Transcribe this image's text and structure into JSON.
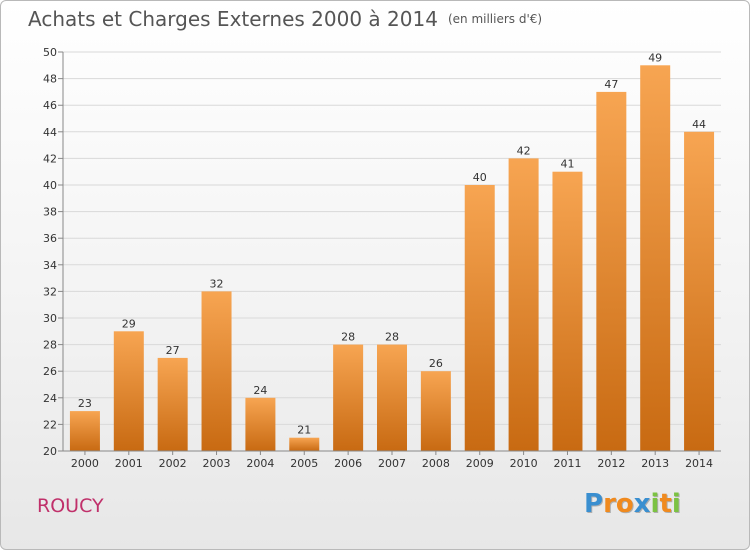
{
  "header": {
    "title": "Achats et Charges Externes 2000 à 2014",
    "unit": "(en milliers d'€)"
  },
  "footer": {
    "place": "ROUCY",
    "logo": [
      "P",
      "r",
      "o",
      "x",
      "i",
      "t",
      "i"
    ],
    "logo_colors": [
      "#3a8fd0",
      "#f08a1e",
      "#f08a1e",
      "#3a8fd0",
      "#7cc242",
      "#f08a1e",
      "#7cc242"
    ]
  },
  "colors": {
    "bar_light": "#f7a552",
    "bar_dark": "#c86a12",
    "grid": "#d9d9d9",
    "axis": "#888888",
    "title": "#555555",
    "place": "#c0306a"
  },
  "chart_data": {
    "type": "bar",
    "title": "Achats et Charges Externes 2000 à 2014",
    "subtitle": "(en milliers d'€)",
    "categories": [
      "2000",
      "2001",
      "2002",
      "2003",
      "2004",
      "2005",
      "2006",
      "2007",
      "2008",
      "2009",
      "2010",
      "2011",
      "2012",
      "2013",
      "2014"
    ],
    "values": [
      23,
      29,
      27,
      32,
      24,
      21,
      28,
      28,
      26,
      40,
      42,
      41,
      47,
      49,
      44
    ],
    "ylim": [
      20,
      50
    ],
    "yticks": [
      20,
      22,
      24,
      26,
      28,
      30,
      32,
      34,
      36,
      38,
      40,
      42,
      44,
      46,
      48,
      50
    ],
    "grid": true,
    "xlabel": "",
    "ylabel": ""
  }
}
